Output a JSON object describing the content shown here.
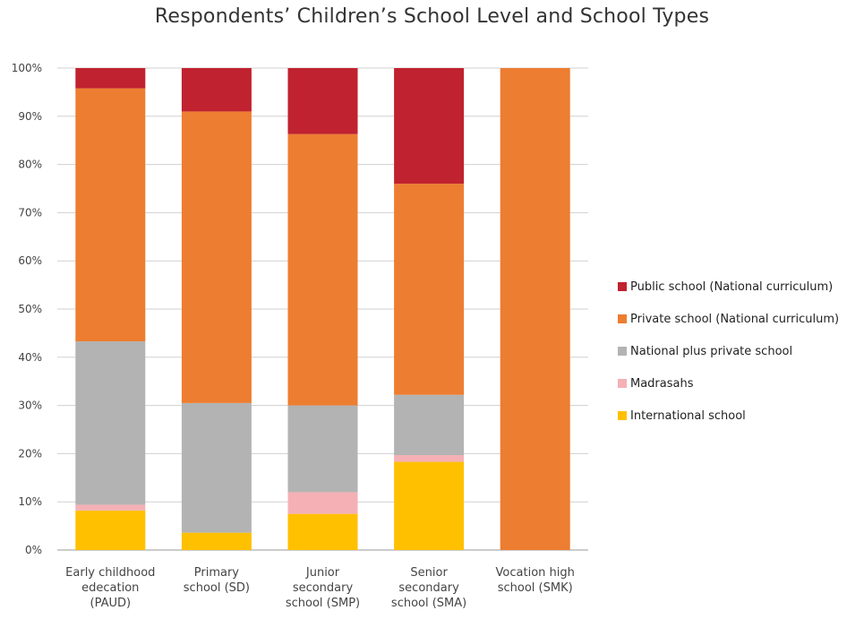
{
  "chart_data": {
    "type": "bar",
    "stacked": true,
    "title": "Respondents’ Children’s School Level and School Types",
    "categories": [
      [
        "Early childhood",
        "edecation",
        "(PAUD)"
      ],
      [
        "Primary",
        "school (SD)"
      ],
      [
        "Junior",
        "secondary",
        "school (SMP)"
      ],
      [
        "Senior",
        "secondary",
        "school (SMA)"
      ],
      [
        "Vocation high",
        "school (SMK)"
      ]
    ],
    "ylim": [
      0,
      100
    ],
    "yticks": [
      "0%",
      "10%",
      "20%",
      "30%",
      "40%",
      "50%",
      "60%",
      "70%",
      "80%",
      "90%",
      "100%"
    ],
    "grid": true,
    "legend_position": "right",
    "series": [
      {
        "name": "International school",
        "color": "#FFC000",
        "values": [
          8.2,
          3.6,
          7.5,
          18.3,
          0
        ]
      },
      {
        "name": "Madrasahs",
        "color": "#F4B0B5",
        "values": [
          1.2,
          0,
          4.5,
          1.4,
          0
        ]
      },
      {
        "name": "National plus private school",
        "color": "#B3B3B3",
        "values": [
          33.9,
          26.9,
          18.0,
          12.5,
          0
        ]
      },
      {
        "name": "Private school (National curriculum)",
        "color": "#ED7D31",
        "values": [
          52.5,
          60.5,
          56.3,
          43.8,
          100
        ]
      },
      {
        "name": "Public school (National curriculum)",
        "color": "#C0222F",
        "values": [
          4.2,
          9.0,
          13.7,
          24.0,
          0
        ]
      }
    ]
  }
}
